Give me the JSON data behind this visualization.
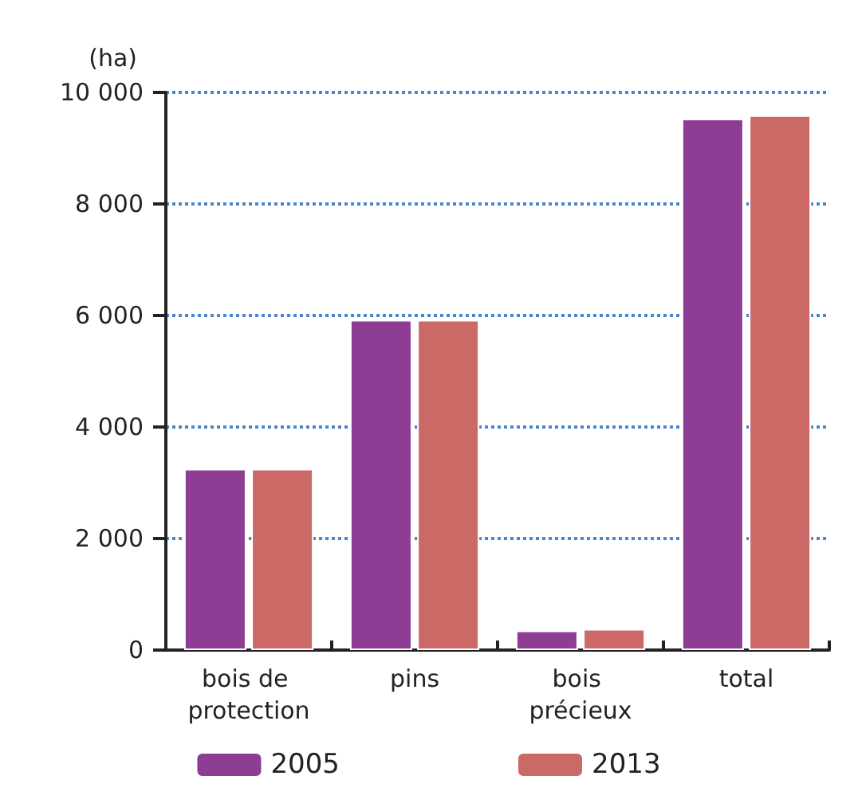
{
  "chart_data": {
    "type": "bar",
    "ylabel": "(ha)",
    "categories": [
      "bois de protection",
      "pins",
      "bois précieux",
      "total"
    ],
    "series": [
      {
        "name": "2005",
        "color": "#8e3d94",
        "values": [
          3250,
          5920,
          350,
          9530
        ]
      },
      {
        "name": "2013",
        "color": "#cb6966",
        "values": [
          3250,
          5920,
          380,
          9590
        ]
      }
    ],
    "ylim": [
      0,
      10000
    ],
    "yticks": [
      0,
      {
        "value": 2000,
        "label": "2 000"
      },
      {
        "value": 4000,
        "label": "4 000"
      },
      {
        "value": 6000,
        "label": "6 000"
      },
      {
        "value": 8000,
        "label": "8 000"
      },
      {
        "value": 10000,
        "label": "10 000"
      }
    ],
    "grid": "y",
    "legend": "bottom"
  }
}
